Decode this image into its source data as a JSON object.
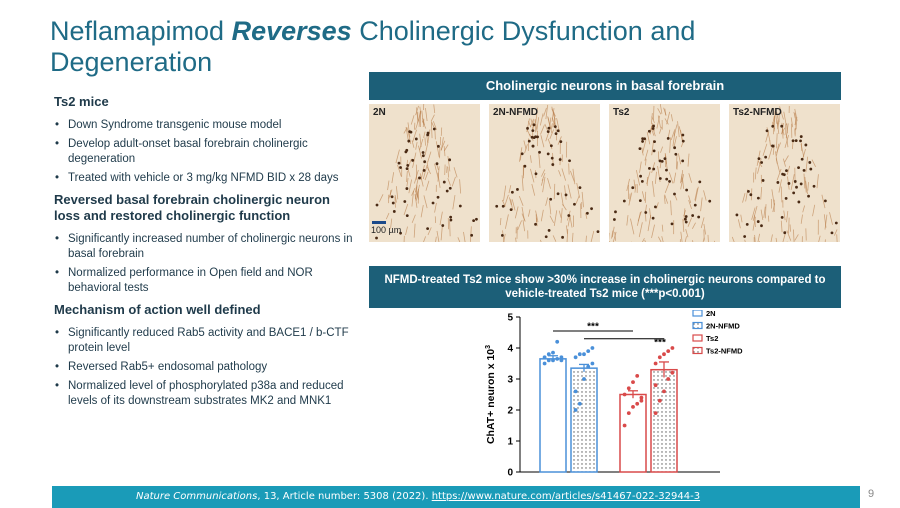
{
  "title": {
    "part1": "Neflamapimod ",
    "emph": "Reverses",
    "part2": " Cholinergic Dysfunction and Degeneration"
  },
  "left": {
    "sec1_head": "Ts2 mice",
    "sec1_items": [
      "Down Syndrome transgenic mouse model",
      "Develop adult-onset basal forebrain cholinergic degeneration",
      "Treated with vehicle or 3 mg/kg NFMD BID x 28 days"
    ],
    "sec2_head": "Reversed basal forebrain cholinergic neuron loss and restored cholinergic function",
    "sec2_items": [
      "Significantly increased number of cholinergic neurons in basal forebrain",
      "Normalized performance in Open field and NOR behavioral tests"
    ],
    "sec3_head": "Mechanism of action well defined",
    "sec3_items": [
      "Significantly reduced Rab5 activity and  BACE1 / b-CTF protein level",
      "Reversed Rab5+ endosomal pathology",
      "Normalized level of phosphorylated p38a and reduced levels of its downstream substrates MK2 and MNK1"
    ]
  },
  "right": {
    "header1": "Cholinergic neurons in basal forebrain",
    "panels": [
      "2N",
      "2N-NFMD",
      "Ts2",
      "Ts2-NFMD"
    ],
    "scale_label": "100 µm",
    "header2": "NFMD-treated Ts2 mice show >30% increase in cholinergic neurons compared to vehicle-treated Ts2 mice (***p<0.001)"
  },
  "footer": {
    "journal": "Nature Communications",
    "citation": ", 13, Article number: 5308 (2022). ",
    "link": "https://www.nature.com/articles/s41467-022-32944-3"
  },
  "page_number": "9",
  "chart_data": {
    "type": "bar",
    "categories": [
      "2N",
      "2N-NFMD",
      "Ts2",
      "Ts2-NFMD"
    ],
    "values": [
      3.65,
      3.35,
      2.5,
      3.3
    ],
    "errors": [
      0.1,
      0.12,
      0.12,
      0.25
    ],
    "points": [
      [
        3.5,
        3.6,
        3.6,
        3.65,
        3.7,
        3.7,
        3.8,
        3.85,
        4.2,
        3.6
      ],
      [
        2.0,
        2.2,
        3.0,
        3.4,
        3.5,
        3.7,
        3.8,
        3.8,
        3.9,
        4.0,
        2.6
      ],
      [
        1.5,
        1.9,
        2.1,
        2.2,
        2.4,
        2.5,
        2.7,
        2.9,
        3.1,
        2.3
      ],
      [
        1.9,
        2.3,
        2.6,
        3.0,
        3.2,
        3.5,
        3.7,
        3.8,
        3.9,
        4.0,
        2.8
      ]
    ],
    "ylabel": "ChAT+ neuron x 10",
    "ylabel_sup": "3",
    "ylim": [
      0,
      5
    ],
    "yticks": [
      "0",
      "1",
      "2",
      "3",
      "4",
      "5"
    ],
    "legend": [
      "2N",
      "2N-NFMD",
      "Ts2",
      "Ts2-NFMD"
    ],
    "legend_position": "top-right",
    "significance": [
      "***",
      "***"
    ],
    "colors": [
      "#4a90d9",
      "#4a90d9",
      "#d94a4a",
      "#d94a4a"
    ]
  }
}
